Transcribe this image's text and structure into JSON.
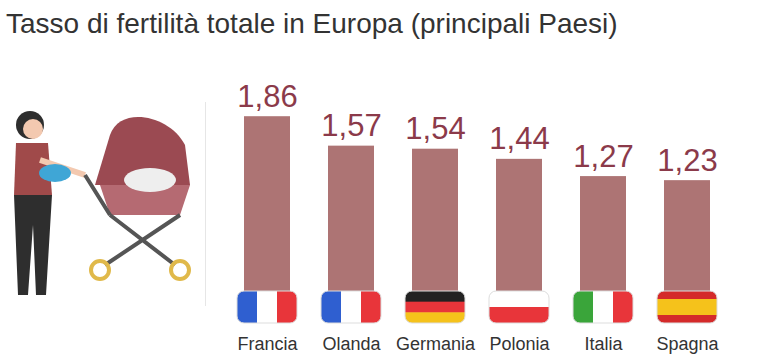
{
  "chart_data": {
    "type": "bar",
    "title": "Tasso di fertilità totale in Europa (principali Paesi)",
    "categories": [
      "Francia",
      "Olanda",
      "Germania",
      "Polonia",
      "Italia",
      "Spagna"
    ],
    "values": [
      1.86,
      1.57,
      1.54,
      1.44,
      1.27,
      1.23
    ],
    "value_labels": [
      "1,86",
      "1,57",
      "1,54",
      "1,44",
      "1,27",
      "1,23"
    ],
    "color": "#ad7474",
    "ylim": [
      0,
      2
    ],
    "data_labels": true,
    "tick_labels": "x",
    "grid": false
  }
}
